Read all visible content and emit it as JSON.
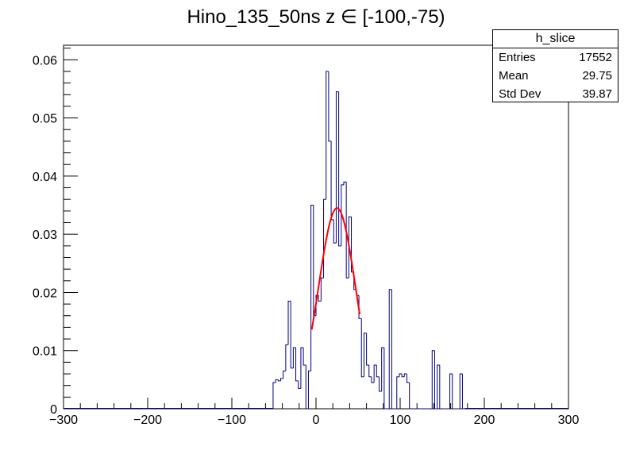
{
  "colors": {
    "histogram": "#000080",
    "fit": "#ff0000",
    "axis": "#000000"
  },
  "stats": {
    "title": "h_slice",
    "rows": [
      {
        "label": "Entries",
        "value": "17552"
      },
      {
        "label": "Mean",
        "value": "29.75"
      },
      {
        "label": "Std Dev",
        "value": "39.87"
      }
    ]
  },
  "chart_data": {
    "type": "histogram",
    "title": "Hino_135_50ns z  ∈ [-100,-75)",
    "xlabel": "",
    "ylabel": "",
    "xlim": [
      -300,
      300
    ],
    "ylim": [
      0,
      0.0625
    ],
    "grid": false,
    "x_ticks": [
      -300,
      -200,
      -100,
      0,
      100,
      200,
      300
    ],
    "x_tick_labels": [
      "−300",
      "−200",
      "−100",
      "0",
      "100",
      "200",
      "300"
    ],
    "y_ticks": [
      0,
      0.01,
      0.02,
      0.03,
      0.04,
      0.05,
      0.06
    ],
    "y_tick_labels": [
      "0",
      "0.01",
      "0.02",
      "0.03",
      "0.04",
      "0.05",
      "0.06"
    ],
    "bin_width": 3,
    "bins_x_start": [
      -51,
      -48,
      -45,
      -42,
      -39,
      -36,
      -33,
      -30,
      -27,
      -24,
      -21,
      -18,
      -15,
      -12,
      -9,
      -6,
      -3,
      0,
      3,
      6,
      9,
      12,
      15,
      18,
      21,
      24,
      27,
      30,
      33,
      36,
      39,
      42,
      45,
      48,
      51,
      54,
      57,
      60,
      63,
      66,
      69,
      72,
      75,
      78,
      81,
      84,
      87,
      90,
      93,
      96,
      99,
      102,
      105,
      108,
      111,
      114,
      117,
      120,
      123,
      126,
      129,
      132,
      135,
      138,
      141,
      144,
      147,
      150,
      153,
      156,
      159,
      162,
      165,
      168,
      171,
      174
    ],
    "values": [
      0.0045,
      0.005,
      0.0048,
      0.0052,
      0.0065,
      0.011,
      0.0185,
      0.007,
      0.0105,
      0.0048,
      0.0035,
      0.0105,
      0.0075,
      0.0,
      0.0065,
      0.035,
      0.016,
      0.0195,
      0.0185,
      0.0225,
      0.036,
      0.058,
      0.046,
      0.0325,
      0.0285,
      0.0545,
      0.028,
      0.0385,
      0.039,
      0.0225,
      0.033,
      0.0235,
      0.0205,
      0.0195,
      0.0155,
      0.0055,
      0.013,
      0.0075,
      0.0055,
      0.0045,
      0.0075,
      0.0055,
      0.003,
      0.0105,
      0.0,
      0.0,
      0.0205,
      0.0,
      0.0,
      0.0055,
      0.006,
      0.0055,
      0.006,
      0.0045,
      0.0,
      0.0,
      0.0,
      0.0,
      0.0,
      0.0,
      0.0,
      0.0,
      0.0,
      0.01,
      0.0,
      0.0075,
      0.0,
      0.0,
      0.0,
      0.0,
      0.006,
      0.0,
      0.0,
      0.0,
      0.006,
      0.0
    ],
    "fit": {
      "name": "gaus",
      "amplitude": 0.0345,
      "mean": 25,
      "sigma": 22,
      "x_range": [
        -5,
        52
      ]
    }
  }
}
